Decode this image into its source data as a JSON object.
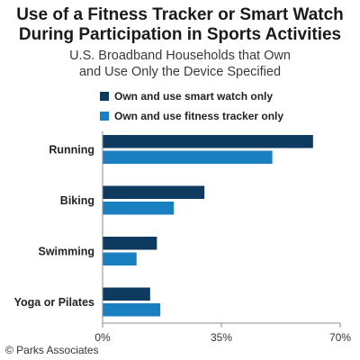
{
  "title_line1": "Use of a Fitness Tracker or Smart Watch",
  "title_line2": "During Participation in Sports Activities",
  "subtitle_line1": "U.S. Broadband Households that Own",
  "subtitle_line2": "and Use Only the Device Specified",
  "source": "© Parks Associates",
  "colors": {
    "smart_watch": "#0e3a5f",
    "fitness_tracker": "#1a7fc1",
    "axis": "#8c8c8c"
  },
  "chart_data": {
    "type": "bar",
    "orientation": "horizontal",
    "categories": [
      "Running",
      "Biking",
      "Swimming",
      "Yoga or Pilates"
    ],
    "series": [
      {
        "name": "Own and use smart watch only",
        "values": [
          62,
          30,
          16,
          14
        ]
      },
      {
        "name": "Own and use fitness tracker only",
        "values": [
          50,
          21,
          10,
          17
        ]
      }
    ],
    "xlim": [
      0,
      70
    ],
    "xticks": [
      "0%",
      "35%",
      "70%"
    ],
    "xtick_values": [
      0,
      35,
      70
    ],
    "legend_position": "top",
    "grid": false
  }
}
